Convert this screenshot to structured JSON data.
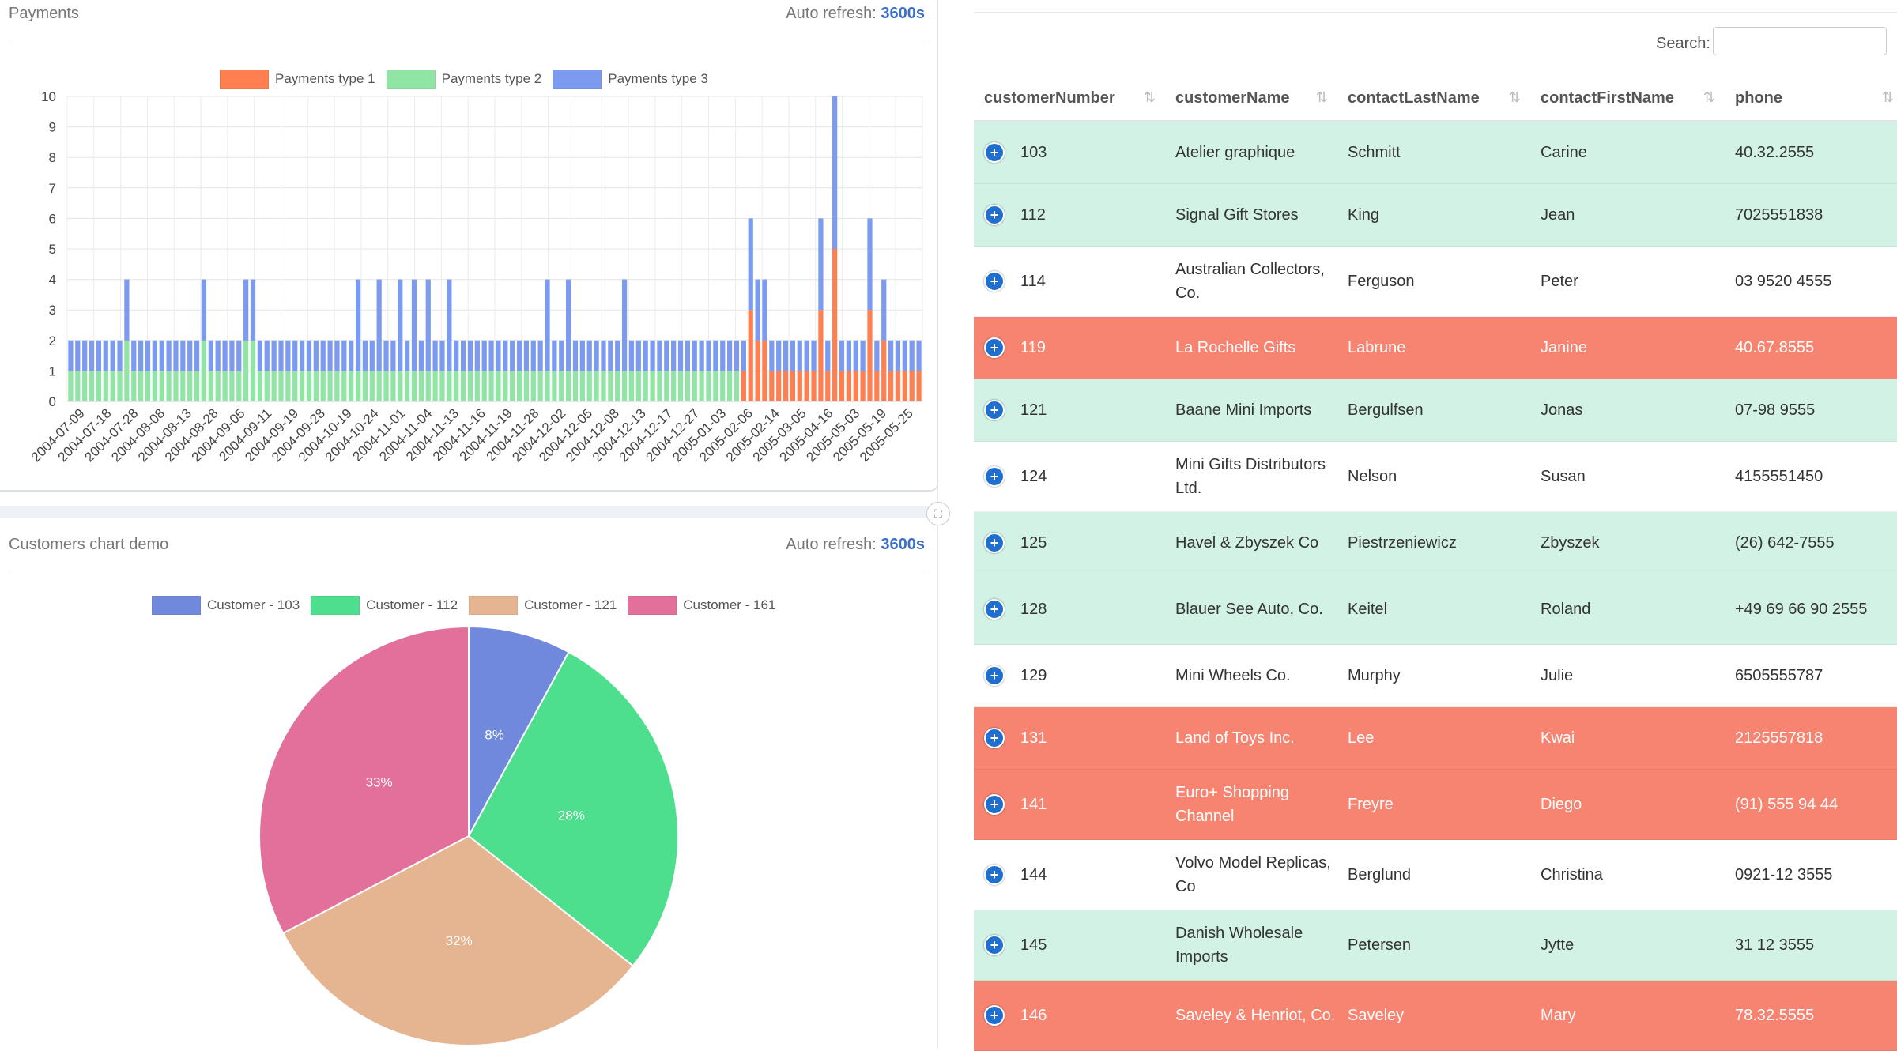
{
  "payments": {
    "title": "Payments",
    "refresh_label": "Auto refresh:",
    "refresh_value": "3600s"
  },
  "customers_chart": {
    "title": "Customers chart demo",
    "refresh_label": "Auto refresh:",
    "refresh_value": "3600s"
  },
  "colors": {
    "type1": "#ff7f50",
    "type2": "#90e4a4",
    "type3": "#7b9af0",
    "c103": "#7089dc",
    "c112": "#4ddf8d",
    "c121": "#e5b592",
    "c161": "#e2709a",
    "green_row": "#d2f2e6",
    "red_row": "#f68471"
  },
  "chart_data": [
    {
      "type": "bar",
      "stacked": true,
      "title": "Payments",
      "legend": [
        "Payments type 1",
        "Payments type 2",
        "Payments type 3"
      ],
      "ylim": [
        0,
        10
      ],
      "yticks": [
        0,
        1,
        2,
        3,
        4,
        5,
        6,
        7,
        8,
        9,
        10
      ],
      "xticklabels": [
        "2004-07-09",
        "2004-07-18",
        "2004-07-28",
        "2004-08-08",
        "2004-08-13",
        "2004-08-28",
        "2004-09-05",
        "2004-09-11",
        "2004-09-19",
        "2004-09-28",
        "2004-10-19",
        "2004-10-24",
        "2004-11-01",
        "2004-11-04",
        "2004-11-13",
        "2004-11-16",
        "2004-11-19",
        "2004-11-28",
        "2004-12-02",
        "2004-12-05",
        "2004-12-08",
        "2004-12-13",
        "2004-12-17",
        "2004-12-27",
        "2005-01-03",
        "2005-02-06",
        "2005-02-14",
        "2005-03-05",
        "2005-04-16",
        "2005-05-03",
        "2005-05-19",
        "2005-05-25"
      ],
      "series": [
        {
          "name": "Payments type 1",
          "values": [
            0,
            0,
            0,
            0,
            0,
            0,
            0,
            0,
            0,
            0,
            0,
            0,
            0,
            0,
            0,
            0,
            0,
            0,
            0,
            0,
            0,
            0,
            0,
            0,
            0,
            0,
            0,
            0,
            0,
            0,
            0,
            0,
            0,
            0,
            0,
            0,
            0,
            0,
            0,
            0,
            0,
            0,
            0,
            0,
            0,
            0,
            0,
            0,
            0,
            0,
            0,
            0,
            0,
            0,
            0,
            0,
            0,
            0,
            0,
            0,
            0,
            0,
            0,
            0,
            0,
            0,
            0,
            0,
            0,
            0,
            0,
            0,
            0,
            0,
            0,
            0,
            0,
            0,
            0,
            0,
            0,
            0,
            0,
            0,
            0,
            0,
            0,
            0,
            0,
            0,
            0,
            0,
            0,
            0,
            0,
            0,
            1,
            3,
            2,
            2,
            1,
            1,
            1,
            1,
            1,
            1,
            1,
            3,
            1,
            5,
            1,
            1,
            1,
            1,
            3,
            1,
            2,
            1,
            1,
            1,
            1,
            1
          ]
        },
        {
          "name": "Payments type 2",
          "values": [
            1,
            1,
            1,
            1,
            1,
            1,
            1,
            1,
            2,
            1,
            1,
            1,
            1,
            1,
            1,
            1,
            1,
            1,
            1,
            2,
            1,
            1,
            1,
            1,
            1,
            2,
            2,
            1,
            1,
            1,
            1,
            1,
            1,
            1,
            1,
            1,
            1,
            1,
            1,
            1,
            1,
            1,
            1,
            1,
            1,
            1,
            1,
            1,
            1,
            1,
            1,
            1,
            1,
            1,
            1,
            1,
            1,
            1,
            1,
            1,
            1,
            1,
            1,
            1,
            1,
            1,
            1,
            1,
            1,
            1,
            1,
            1,
            1,
            1,
            1,
            1,
            1,
            1,
            1,
            1,
            1,
            1,
            1,
            1,
            1,
            1,
            1,
            1,
            1,
            1,
            1,
            1,
            1,
            1,
            1,
            1,
            0,
            0,
            0,
            0,
            0,
            0,
            0,
            0,
            0,
            0,
            0,
            0,
            0,
            0,
            0,
            0,
            0,
            0,
            0,
            0,
            0,
            0,
            0,
            0,
            0,
            0
          ]
        },
        {
          "name": "Payments type 3",
          "values": [
            1,
            1,
            1,
            1,
            1,
            1,
            1,
            1,
            2,
            1,
            1,
            1,
            1,
            1,
            1,
            1,
            1,
            1,
            1,
            2,
            1,
            1,
            1,
            1,
            1,
            2,
            2,
            1,
            1,
            1,
            1,
            1,
            1,
            1,
            1,
            1,
            1,
            1,
            1,
            1,
            1,
            3,
            1,
            1,
            3,
            1,
            1,
            3,
            1,
            3,
            1,
            3,
            1,
            1,
            3,
            1,
            1,
            1,
            1,
            1,
            1,
            1,
            1,
            1,
            1,
            1,
            1,
            1,
            3,
            1,
            1,
            3,
            1,
            1,
            1,
            1,
            1,
            1,
            1,
            3,
            1,
            1,
            1,
            1,
            1,
            1,
            1,
            1,
            1,
            1,
            1,
            1,
            1,
            1,
            1,
            1,
            1,
            3,
            2,
            2,
            1,
            1,
            1,
            1,
            1,
            1,
            1,
            3,
            1,
            5,
            1,
            1,
            1,
            1,
            3,
            1,
            2,
            1,
            1,
            1,
            1,
            1
          ]
        }
      ]
    },
    {
      "type": "pie",
      "title": "Customers chart demo",
      "labels": [
        "Customer - 103",
        "Customer - 112",
        "Customer - 121",
        "Customer - 161"
      ],
      "values": [
        8,
        28,
        32,
        33
      ],
      "display_labels": [
        "8%",
        "28%",
        "32%",
        "33%"
      ]
    }
  ],
  "table": {
    "search_label": "Search:",
    "search_value": "",
    "columns": [
      "customerNumber",
      "customerName",
      "contactLastName",
      "contactFirstName",
      "phone"
    ],
    "rows": [
      {
        "num": "103",
        "name": "Atelier graphique",
        "last": "Schmitt",
        "first": "Carine",
        "phone": "40.32.2555",
        "color": "g"
      },
      {
        "num": "112",
        "name": "Signal Gift Stores",
        "last": "King",
        "first": "Jean",
        "phone": "7025551838",
        "color": "g"
      },
      {
        "num": "114",
        "name": "Australian Collectors, Co.",
        "last": "Ferguson",
        "first": "Peter",
        "phone": "03 9520 4555",
        "color": "w"
      },
      {
        "num": "119",
        "name": "La Rochelle Gifts",
        "last": "Labrune",
        "first": "Janine",
        "phone": "40.67.8555",
        "color": "r"
      },
      {
        "num": "121",
        "name": "Baane Mini Imports",
        "last": "Bergulfsen",
        "first": "Jonas",
        "phone": "07-98 9555",
        "color": "g"
      },
      {
        "num": "124",
        "name": "Mini Gifts Distributors Ltd.",
        "last": "Nelson",
        "first": "Susan",
        "phone": "4155551450",
        "color": "w"
      },
      {
        "num": "125",
        "name": "Havel & Zbyszek Co",
        "last": "Piestrzeniewicz",
        "first": "Zbyszek",
        "phone": "(26) 642-7555",
        "color": "g"
      },
      {
        "num": "128",
        "name": "Blauer See Auto, Co.",
        "last": "Keitel",
        "first": "Roland",
        "phone": "+49 69 66 90 2555",
        "color": "g"
      },
      {
        "num": "129",
        "name": "Mini Wheels Co.",
        "last": "Murphy",
        "first": "Julie",
        "phone": "6505555787",
        "color": "w"
      },
      {
        "num": "131",
        "name": "Land of Toys Inc.",
        "last": "Lee",
        "first": "Kwai",
        "phone": "2125557818",
        "color": "r"
      },
      {
        "num": "141",
        "name": "Euro+ Shopping Channel",
        "last": "Freyre",
        "first": "Diego",
        "phone": "(91) 555 94 44",
        "color": "r"
      },
      {
        "num": "144",
        "name": "Volvo Model Replicas, Co",
        "last": "Berglund",
        "first": "Christina",
        "phone": "0921-12 3555",
        "color": "w"
      },
      {
        "num": "145",
        "name": "Danish Wholesale Imports",
        "last": "Petersen",
        "first": "Jytte",
        "phone": "31 12 3555",
        "color": "g"
      },
      {
        "num": "146",
        "name": "Saveley & Henriot, Co.",
        "last": "Saveley",
        "first": "Mary",
        "phone": "78.32.5555",
        "color": "r"
      }
    ]
  }
}
